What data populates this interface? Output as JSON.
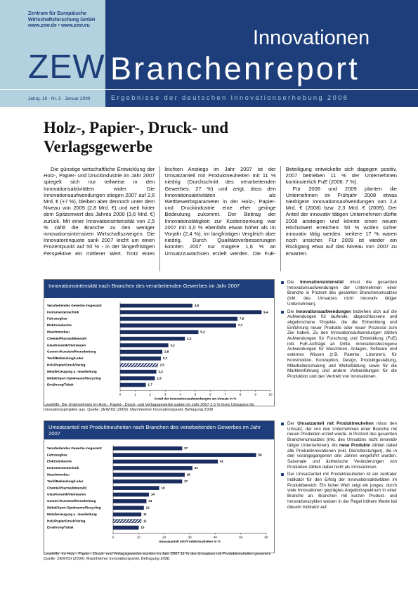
{
  "header": {
    "org": [
      "Zentrum für Europäische",
      "Wirtschaftsforschung GmbH",
      "www.zew.de • www.zew.eu"
    ],
    "logo": "ZEW",
    "series_title": "Innovationen",
    "report": "Branchenreport",
    "issue": "Jahrg. 16 · Nr. 3 · Januar 2009",
    "subtitle": "Ergebnisse der deutschen Innovationserhebung 2008"
  },
  "title": "Holz-, Papier-, Druck- und Verlagsgewerbe",
  "body": [
    "Die günstige wirtschaftliche Entwicklung der Holz-, Papier- und Druckindustrie im Jahr 2007 spiegelt sich nur teilweise in den Innovationsaktivitäten wider. Die Innovationsaufwendungen stiegen 2007 auf 2,6 Mrd. € (+7 %), bleiben aber dennoch unter dem Niveau von 2005 (2,8 Mrd. €) und weit hinter dem Spitzenwert des Jahres 2000 (3,6 Mrd. €) zurück. Mit einer Innovationsintensität von 2,5 % zählt die Branche zu den weniger innovationsintensiven Wirtschaftszweigen. Die Innovatorenquote sank 2007 leicht um einen Prozentpunkt auf 50 % - in der längerfristigen Perspektive ein mittlerer Wert. Trotz eines leichten Anstiegs im Jahr 2007 ist der Umsatzanteil mit Produktneuheiten mit 11 % niedrig (Durchschnitt des verarbeitenden Gewerbes: 27 %) und zeigt, dass den Innovationsaktivitäten als Wettbewerbsparameter in der Holz-, Papier- und Druckindustrie eine eher geringe Bedeutung zukommt. Der Beitrag der Innovationstätigkeit zur Kostensenkung war 2007 mit 3,0 % ebenfalls etwas höher als im Vorjahr (2,4 %), im langfristigen Vergleich aber niedrig. Durch Qualitätsverbesserungen konnten 2007 nur magere 1,6 % an Umsatzzuwächsen erzielt werden. Die FuE-Beteiligung entwickelte sich dagegen positiv, 2007 betrieben 11 % der Unternehmen kontinuierlich FuE (2006: 7 %).",
    "Für 2008 und 2009 planten die Unternehmen im Frühjahr 2008 etwas niedrigere Innovationsaufwendungen von 2,4 Mrd. € (2008) bzw. 2,3 Mrd. € (2009). Der Anteil der innovativ tätigen Unternehmen dürfte 2008 ansteigen und könnte einen neuen Höchstwert erreichen: 50 % wollen sicher innovativ tätig werden, weitere 17 % waren noch unsicher. Für 2009 ist wieder ein Rückgang etwa auf das Niveau von 2007 zu erwarten."
  ],
  "chart_data": [
    {
      "type": "bar",
      "orientation": "horizontal",
      "title": "Innovationsintensität nach Branchen des verarbeitenden Gewerbes im Jahr 2007",
      "categories": [
        "Verarbeitendes Gewerbe insgesamt",
        "Instrumententechnik",
        "Fahrzeugbau",
        "Elektroindustrie",
        "Maschinenbau",
        "Chemie/Pharma/Mineralöl",
        "Glas/Keramik/Steinwaren",
        "Gummi-/Kunststoffverarbeitung",
        "Textil/Bekleidung/Leder",
        "Holz/Papier/Druck/Verlag",
        "Metallerzeugung u. -bearbeitung",
        "Möbel/Sport-/Spielwaren/Recycling",
        "Ernährung/Tabak"
      ],
      "values": [
        4.8,
        9.4,
        7.8,
        7.7,
        5.2,
        4.3,
        3.2,
        2.8,
        2.7,
        2.5,
        2.4,
        2.3,
        1.7
      ],
      "value_labels": [
        "4,8",
        "9,4",
        "7,8",
        "7,7",
        "5,2",
        "4,3",
        "3,2",
        "2,8",
        "2,7",
        "2,5",
        "2,4",
        "2,3",
        "1,7"
      ],
      "color": "#1b2d5e",
      "hatched_index": 9,
      "xlim": [
        0,
        10
      ],
      "xticks": [
        0,
        1,
        2,
        3,
        4,
        5,
        6,
        7,
        8,
        9,
        10
      ],
      "xlabel": "Anteil der Innovationsaufwendungen am Umsatz in %",
      "caption": "Lesehilfe: Die Unternehmen im Holz-, Papier-, Druck- und Verlagsgewerbe gaben im Jahr 2007 2,5 % ihres Umsatzes für Innovationsprojekte aus. Quelle: ZEW/ISI (2009): Mannheimer Innovationspanel, Befragung 2008."
    },
    {
      "type": "bar",
      "orientation": "horizontal",
      "title": "Umsatzanteil mit Produktneuheiten nach Branchen des verarbeitenden Gewerbes im Jahr 2007",
      "categories": [
        "Verarbeitendes Gewerbe insgesamt",
        "Fahrzeugbau",
        "Elektroindustrie",
        "Instrumententechnik",
        "Maschinenbau",
        "Textil/Bekleidung/Leder",
        "Chemie/Pharma/Mineralöl",
        "Glas/Keramik/Steinwaren",
        "Gummi-/Kunststoffverarbeitung",
        "Möbel/Sport-/Spielwaren/Recycling",
        "Metallerzeugung u. -bearbeitung",
        "Holz/Papier/Druck/Verlag",
        "Ernährung/Tabak"
      ],
      "values": [
        27,
        56,
        41,
        31,
        28,
        27,
        18,
        14,
        13,
        12,
        11,
        11,
        10
      ],
      "color": "#1b2d5e",
      "hatched_index": 11,
      "xlim": [
        0,
        60
      ],
      "xticks": [
        0,
        10,
        20,
        30,
        40,
        50,
        60
      ],
      "xlabel": "Umsatzanteil mit Produktneuheiten in %",
      "caption": "Lesehilfe: Im Holz-, Papier-, Druck- und Verlagsgewerbe wurden im Jahr 2007 11 % des Umsatzes mit Produktneuheiten generiert. Quelle: ZEW/ISI (2009): Mannheimer Innovationspanel, Befragung 2008."
    }
  ],
  "sidebars": [
    [
      [
        {
          "text": "Die ",
          "bold": false
        },
        {
          "text": "Innovationsintensität",
          "bold": true
        },
        {
          "text": " misst die gesamten Innovationsaufwendungen der Unternehmen einer Branche in Prozent des gesamten Branchenumsatzes (inkl. des Umsatzes nicht innovativ tätiger Unternehmen).",
          "bold": false
        }
      ],
      [
        {
          "text": "Die ",
          "bold": false
        },
        {
          "text": "Innovationsaufwendungen",
          "bold": true
        },
        {
          "text": " beziehen sich auf die Aufwendungen für laufende, abgeschlossene und abgebrochene Projekte, die die Entwicklung und Einführung neuer Produkte oder neuer Prozesse zum Ziel haben. Zu den Innovationsaufwendungen zählen Aufwendungen für Forschung und Entwicklung (FuE) inkl. FuE-Aufträge an Dritte, innovationsbezogene Aufwendungen für Maschinen, Anlagen, Software und externes Wissen (z.B. Patente, Lizenzen), für Konstruktion, Konzeption, Design, Produktgestaltung, Mitarbeiterschulung und Weiterbildung sowie für die Markteinführung und andere Vorbereitungen für die Produktion und den Vertrieb von Innovationen.",
          "bold": false
        }
      ]
    ],
    [
      [
        {
          "text": "Der ",
          "bold": false
        },
        {
          "text": "Umsatzanteil mit Produktneuheiten",
          "bold": true
        },
        {
          "text": " misst den Umsatz, der von den Unternehmen einer Branche mit neuen Produkten erzielt wurde, in Prozent des gesamten Branchenumsatzes (inkl. des Umsatzes nicht innovativ tätiger Unternehmen). Als ",
          "bold": false
        },
        {
          "text": "neue Produkte",
          "bold": true
        },
        {
          "text": " zählen dabei alle Produktinnovationen (inkl. Dienstleistungen), die in den vorangegangenen drei Jahren eingeführt wurden. Saisonale und ästhetische Veränderungen von Produkten zählen dabei nicht als Innovationen.",
          "bold": false
        }
      ],
      [
        {
          "text": "Der Umsatzanteil mit Produktneuheiten ist ein zentraler Indikator für den Erfolg der Innovationsaktivitäten im Produktbereich. Ein hoher Wert zeigt ein junges, durch viele Innovationen geprägtes Angebotsspektrum in einer Branche an. Branchen mit kurzen Produkt- und Innovationszyklen weisen in der Regel höhere Werte bei diesem Indikator auf.",
          "bold": false
        }
      ]
    ]
  ]
}
